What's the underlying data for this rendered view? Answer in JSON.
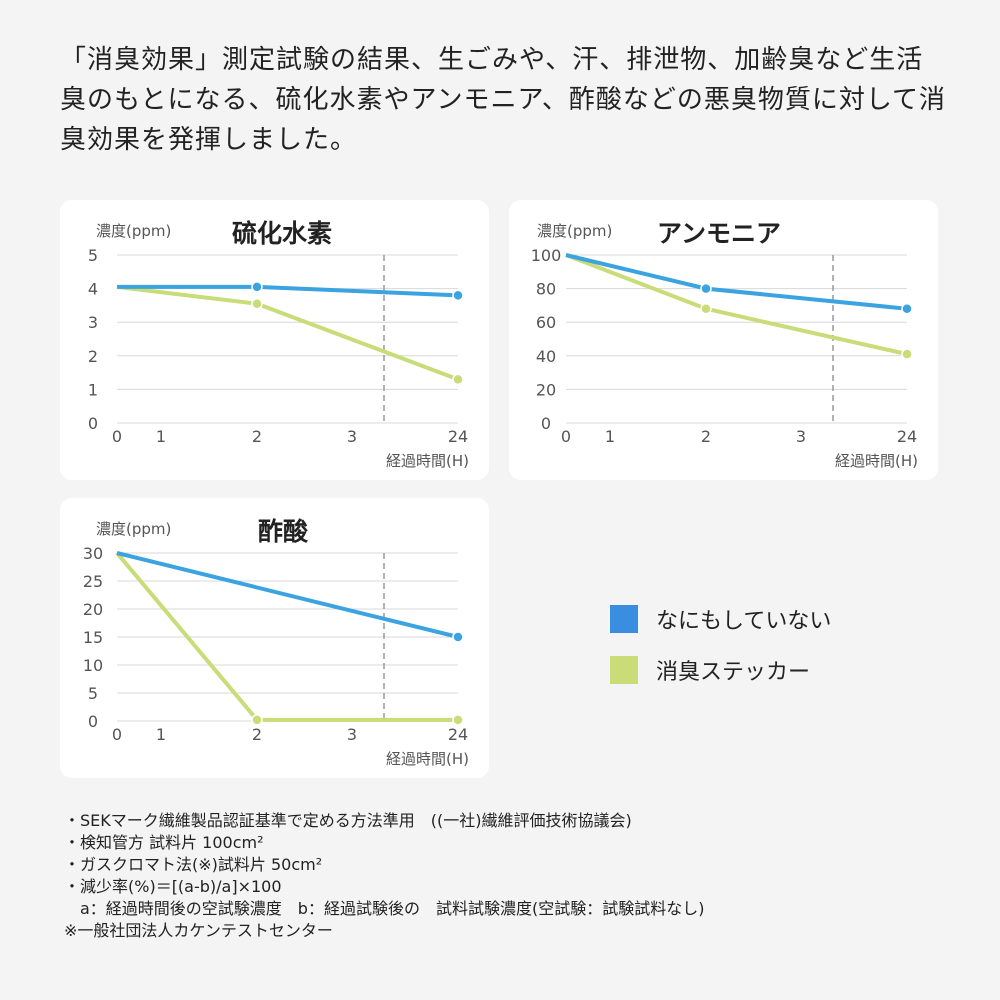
{
  "intro": "「消臭効果」測定試験の結果、生ごみや、汗、排泄物、加齢臭など生活臭のもとになる、硫化水素やアンモニア、酢酸などの悪臭物質に対して消臭効果を発揮しました。",
  "chart_data": [
    {
      "type": "line",
      "title": "硫化水素",
      "ylabel": "濃度(ppm)",
      "xlabel": "経過時間(H)",
      "x_ticks": [
        "0",
        "1",
        "2",
        "3",
        "24"
      ],
      "y_ticks": [
        "0",
        "1",
        "2",
        "3",
        "4",
        "5"
      ],
      "ylim": [
        0,
        5
      ],
      "grid": true,
      "x": [
        "0",
        "2",
        "24"
      ],
      "series": [
        {
          "name": "なにもしていない",
          "color": "#3aa3e0",
          "values": [
            4.05,
            4.05,
            3.8
          ]
        },
        {
          "name": "消臭ステッカー",
          "color": "#c8dc78",
          "values": [
            4.05,
            3.55,
            1.3
          ]
        }
      ]
    },
    {
      "type": "line",
      "title": "アンモニア",
      "ylabel": "濃度(ppm)",
      "xlabel": "経過時間(H)",
      "x_ticks": [
        "0",
        "1",
        "2",
        "3",
        "24"
      ],
      "y_ticks": [
        "0",
        "20",
        "40",
        "60",
        "80",
        "100"
      ],
      "ylim": [
        0,
        100
      ],
      "grid": true,
      "x": [
        "0",
        "2",
        "24"
      ],
      "series": [
        {
          "name": "なにもしていない",
          "color": "#3aa3e0",
          "values": [
            100,
            80,
            68
          ]
        },
        {
          "name": "消臭ステッカー",
          "color": "#c8dc78",
          "values": [
            100,
            68,
            41
          ]
        }
      ]
    },
    {
      "type": "line",
      "title": "酢酸",
      "ylabel": "濃度(ppm)",
      "xlabel": "経過時間(H)",
      "x_ticks": [
        "0",
        "1",
        "2",
        "3",
        "24"
      ],
      "y_ticks": [
        "0",
        "5",
        "10",
        "15",
        "20",
        "25",
        "30"
      ],
      "ylim": [
        0,
        30
      ],
      "grid": true,
      "x": [
        "0",
        "2",
        "24"
      ],
      "series": [
        {
          "name": "なにもしていない",
          "color": "#3aa3e0",
          "values": [
            30,
            null,
            15
          ]
        },
        {
          "name": "消臭ステッカー",
          "color": "#c8dc78",
          "values": [
            30,
            0.2,
            0.2
          ]
        }
      ]
    }
  ],
  "legend": [
    {
      "label": "なにもしていない",
      "color": "#3a8ee0"
    },
    {
      "label": "消臭ステッカー",
      "color": "#c8dc78"
    }
  ],
  "notes": [
    "・SEKマーク繊維製品認証基準で定める方法準用　((一社)繊維評価技術協議会)",
    "・検知管方 試料片 100cm²",
    "・ガスクロマト法(※)試料片 50cm²",
    "・減少率(%)＝[(a-b)/a]×100",
    "　a：経過時間後の空試験濃度　b：経過試験後の　試料試験濃度(空試験：試験試料なし)",
    "",
    "※一般社団法人カケンテストセンター"
  ]
}
